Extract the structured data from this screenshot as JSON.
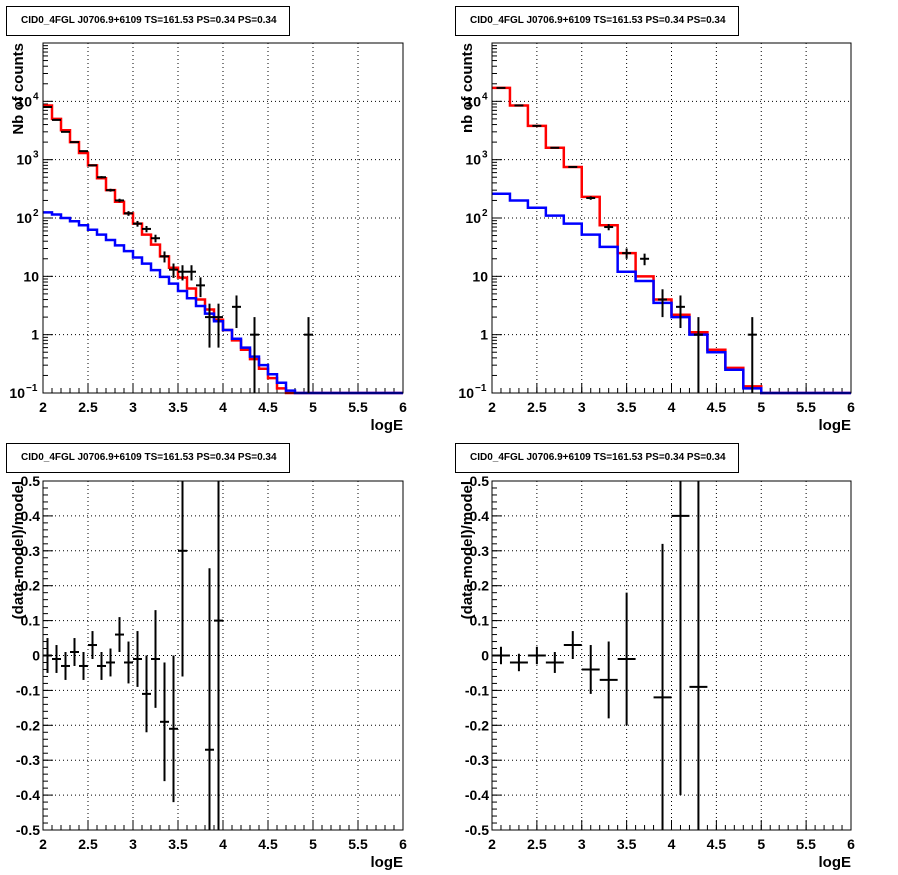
{
  "chart_data": [
    {
      "type": "line",
      "title": "CID0_4FGL J0706.9+6109 TS=161.53 PS=0.34 PS=0.34",
      "xlabel": "logE",
      "ylabel": "Nb of counts",
      "xlim": [
        2,
        6
      ],
      "ylim": [
        0.1,
        100000
      ],
      "yscale": "log",
      "grid": true,
      "x_ticks": [
        "2",
        "2.5",
        "3",
        "3.5",
        "4",
        "4.5",
        "5",
        "5.5",
        "6"
      ],
      "y_ticks": [
        {
          "value": 0.1,
          "label": "10",
          "sup": "−1"
        },
        {
          "value": 1,
          "label": "1",
          "sup": ""
        },
        {
          "value": 10,
          "label": "10",
          "sup": ""
        },
        {
          "value": 100,
          "label": "10",
          "sup": "2"
        },
        {
          "value": 1000,
          "label": "10",
          "sup": "3"
        },
        {
          "value": 10000,
          "label": "10",
          "sup": "4"
        }
      ],
      "bin_edges": [
        2.0,
        2.1,
        2.2,
        2.3,
        2.4,
        2.5,
        2.6,
        2.7,
        2.8,
        2.9,
        3.0,
        3.1,
        3.2,
        3.3,
        3.4,
        3.5,
        3.6,
        3.7,
        3.8,
        3.9,
        4.0,
        4.1,
        4.2,
        4.3,
        4.4,
        4.5,
        4.6,
        4.7,
        4.8,
        4.9,
        5.0,
        5.1,
        5.2,
        5.3,
        5.4,
        5.5,
        5.6,
        5.7,
        5.8,
        5.9,
        6.0
      ],
      "series": [
        {
          "color": "#ff0000",
          "kind": "step",
          "values": [
            8500,
            5000,
            3200,
            2000,
            1300,
            800,
            480,
            300,
            190,
            120,
            80,
            52,
            35,
            22,
            14,
            9.5,
            6.2,
            4.0,
            2.7,
            1.8,
            1.2,
            0.8,
            0.55,
            0.38,
            0.26,
            0.18,
            0.12,
            0.1,
            0.1,
            0.1,
            0.1,
            0.1,
            0.1,
            0.1,
            0.1,
            0.1,
            0.1,
            0.1,
            0.1,
            0.1
          ]
        },
        {
          "color": "#0000ff",
          "kind": "step",
          "values": [
            125,
            115,
            100,
            88,
            75,
            63,
            52,
            42,
            34,
            27,
            21,
            16.5,
            12.8,
            9.8,
            7.5,
            5.6,
            4.2,
            3.1,
            2.3,
            1.7,
            1.2,
            0.85,
            0.6,
            0.42,
            0.3,
            0.21,
            0.15,
            0.11,
            0.1,
            0.1,
            0.1,
            0.1,
            0.1,
            0.1,
            0.1,
            0.1,
            0.1,
            0.1,
            0.1,
            0.1
          ]
        },
        {
          "color": "#000000",
          "kind": "points",
          "points": [
            {
              "x": 2.05,
              "y": 8000,
              "lo": 7900,
              "hi": 8100
            },
            {
              "x": 2.15,
              "y": 4800,
              "lo": 4730,
              "hi": 4870
            },
            {
              "x": 2.25,
              "y": 3000,
              "lo": 2945,
              "hi": 3055
            },
            {
              "x": 2.35,
              "y": 2000,
              "lo": 1955,
              "hi": 2045
            },
            {
              "x": 2.45,
              "y": 1400,
              "lo": 1363,
              "hi": 1437
            },
            {
              "x": 2.55,
              "y": 800,
              "lo": 772,
              "hi": 828
            },
            {
              "x": 2.65,
              "y": 500,
              "lo": 478,
              "hi": 522
            },
            {
              "x": 2.75,
              "y": 300,
              "lo": 283,
              "hi": 317
            },
            {
              "x": 2.85,
              "y": 200,
              "lo": 186,
              "hi": 214
            },
            {
              "x": 2.95,
              "y": 120,
              "lo": 109,
              "hi": 131
            },
            {
              "x": 3.05,
              "y": 80,
              "lo": 71,
              "hi": 89
            },
            {
              "x": 3.15,
              "y": 65,
              "lo": 57,
              "hi": 73
            },
            {
              "x": 3.25,
              "y": 45,
              "lo": 38.3,
              "hi": 51.7
            },
            {
              "x": 3.35,
              "y": 22,
              "lo": 17.3,
              "hi": 26.7
            },
            {
              "x": 3.45,
              "y": 13,
              "lo": 9.4,
              "hi": 16.6
            },
            {
              "x": 3.55,
              "y": 12,
              "lo": 8.5,
              "hi": 15.5
            },
            {
              "x": 3.65,
              "y": 12,
              "lo": 8.5,
              "hi": 15.5
            },
            {
              "x": 3.75,
              "y": 7,
              "lo": 4.4,
              "hi": 9.6
            },
            {
              "x": 3.85,
              "y": 2,
              "lo": 0.6,
              "hi": 3.4
            },
            {
              "x": 3.95,
              "y": 2,
              "lo": 0.6,
              "hi": 3.4
            },
            {
              "x": 4.15,
              "y": 3,
              "lo": 1.3,
              "hi": 4.7
            },
            {
              "x": 4.35,
              "y": 1,
              "lo": 0.1,
              "hi": 2.0
            },
            {
              "x": 4.95,
              "y": 1,
              "lo": 0.1,
              "hi": 2.0
            }
          ]
        }
      ]
    },
    {
      "type": "line",
      "title": "CID0_4FGL J0706.9+6109 TS=161.53 PS=0.34 PS=0.34",
      "xlabel": "logE",
      "ylabel": "nb of counts",
      "xlim": [
        2,
        6
      ],
      "ylim": [
        0.1,
        100000
      ],
      "yscale": "log",
      "grid": true,
      "x_ticks": [
        "2",
        "2.5",
        "3",
        "3.5",
        "4",
        "4.5",
        "5",
        "5.5",
        "6"
      ],
      "y_ticks": [
        {
          "value": 0.1,
          "label": "10",
          "sup": "−1"
        },
        {
          "value": 1,
          "label": "1",
          "sup": ""
        },
        {
          "value": 10,
          "label": "10",
          "sup": ""
        },
        {
          "value": 100,
          "label": "10",
          "sup": "2"
        },
        {
          "value": 1000,
          "label": "10",
          "sup": "3"
        },
        {
          "value": 10000,
          "label": "10",
          "sup": "4"
        }
      ],
      "bin_edges": [
        2.0,
        2.2,
        2.4,
        2.6,
        2.8,
        3.0,
        3.2,
        3.4,
        3.6,
        3.8,
        4.0,
        4.2,
        4.4,
        4.6,
        4.8,
        5.0,
        5.2,
        5.4,
        5.6,
        5.8,
        6.0
      ],
      "series": [
        {
          "color": "#ff0000",
          "kind": "step",
          "values": [
            17000,
            8500,
            3800,
            1600,
            750,
            230,
            75,
            25,
            10,
            4.0,
            2.2,
            1.1,
            0.55,
            0.27,
            0.13,
            0.1,
            0.1,
            0.1,
            0.1,
            0.1
          ]
        },
        {
          "color": "#0000ff",
          "kind": "step",
          "values": [
            260,
            200,
            150,
            110,
            80,
            52,
            32,
            12,
            8.3,
            3.5,
            2.0,
            1.0,
            0.5,
            0.25,
            0.12,
            0.1,
            0.1,
            0.1,
            0.1,
            0.1
          ]
        },
        {
          "color": "#000000",
          "kind": "points",
          "points": [
            {
              "x": 2.1,
              "y": 17000,
              "lo": 16870,
              "hi": 17130
            },
            {
              "x": 2.3,
              "y": 8500,
              "lo": 8408,
              "hi": 8592
            },
            {
              "x": 2.5,
              "y": 3800,
              "lo": 3738,
              "hi": 3862
            },
            {
              "x": 2.7,
              "y": 1600,
              "lo": 1560,
              "hi": 1640
            },
            {
              "x": 2.9,
              "y": 750,
              "lo": 723,
              "hi": 777
            },
            {
              "x": 3.1,
              "y": 220,
              "lo": 205,
              "hi": 235
            },
            {
              "x": 3.3,
              "y": 70,
              "lo": 61.6,
              "hi": 78.4
            },
            {
              "x": 3.5,
              "y": 25,
              "lo": 20,
              "hi": 30
            },
            {
              "x": 3.7,
              "y": 20,
              "lo": 15.5,
              "hi": 24.5
            },
            {
              "x": 3.9,
              "y": 4,
              "lo": 2.0,
              "hi": 6.0
            },
            {
              "x": 4.1,
              "y": 3,
              "lo": 1.3,
              "hi": 4.7
            },
            {
              "x": 4.3,
              "y": 1,
              "lo": 0.1,
              "hi": 2.0
            },
            {
              "x": 4.9,
              "y": 1,
              "lo": 0.1,
              "hi": 2.0
            }
          ]
        }
      ]
    },
    {
      "type": "scatter",
      "title": "CID0_4FGL J0706.9+6109 TS=161.53 PS=0.34 PS=0.34",
      "xlabel": "logE",
      "ylabel": "(data-model)/model",
      "xlim": [
        2,
        6
      ],
      "ylim": [
        -0.5,
        0.5
      ],
      "grid": true,
      "x_ticks": [
        "2",
        "2.5",
        "3",
        "3.5",
        "4",
        "4.5",
        "5",
        "5.5",
        "6"
      ],
      "y_ticks": [
        "-0.5",
        "-0.4",
        "-0.3",
        "-0.2",
        "-0.1",
        "0",
        "0.1",
        "0.2",
        "0.3",
        "0.4",
        "0.5"
      ],
      "half_width": 0.05,
      "series": [
        {
          "color": "#000000",
          "points": [
            {
              "x": 2.05,
              "y": 0.0,
              "err": 0.05
            },
            {
              "x": 2.15,
              "y": -0.01,
              "err": 0.04
            },
            {
              "x": 2.25,
              "y": -0.03,
              "err": 0.04
            },
            {
              "x": 2.35,
              "y": 0.01,
              "err": 0.04
            },
            {
              "x": 2.45,
              "y": -0.03,
              "err": 0.04
            },
            {
              "x": 2.55,
              "y": 0.03,
              "err": 0.04
            },
            {
              "x": 2.65,
              "y": -0.03,
              "err": 0.04
            },
            {
              "x": 2.75,
              "y": -0.02,
              "err": 0.04
            },
            {
              "x": 2.85,
              "y": 0.06,
              "err": 0.05
            },
            {
              "x": 2.95,
              "y": -0.02,
              "err": 0.06
            },
            {
              "x": 3.05,
              "y": -0.01,
              "err": 0.08
            },
            {
              "x": 3.15,
              "y": -0.11,
              "err": 0.11
            },
            {
              "x": 3.25,
              "y": -0.01,
              "err": 0.14
            },
            {
              "x": 3.35,
              "y": -0.19,
              "err": 0.17
            },
            {
              "x": 3.45,
              "y": -0.21,
              "err": 0.21
            },
            {
              "x": 3.55,
              "y": 0.3,
              "err": 0.36
            },
            {
              "x": 3.85,
              "y": -0.27,
              "err": 0.52
            },
            {
              "x": 3.95,
              "y": 0.1,
              "err": 1.3
            }
          ]
        }
      ]
    },
    {
      "type": "scatter",
      "title": "CID0_4FGL J0706.9+6109 TS=161.53 PS=0.34 PS=0.34",
      "xlabel": "logE",
      "ylabel": "(data-model)/model",
      "xlim": [
        2,
        6
      ],
      "ylim": [
        -0.5,
        0.5
      ],
      "grid": true,
      "x_ticks": [
        "2",
        "2.5",
        "3",
        "3.5",
        "4",
        "4.5",
        "5",
        "5.5",
        "6"
      ],
      "y_ticks": [
        "-0.5",
        "-0.4",
        "-0.3",
        "-0.2",
        "-0.1",
        "0",
        "0.1",
        "0.2",
        "0.3",
        "0.4",
        "0.5"
      ],
      "half_width": 0.1,
      "series": [
        {
          "color": "#000000",
          "points": [
            {
              "x": 2.1,
              "y": 0.0,
              "err": 0.025
            },
            {
              "x": 2.3,
              "y": -0.02,
              "err": 0.025
            },
            {
              "x": 2.5,
              "y": 0.0,
              "err": 0.025
            },
            {
              "x": 2.7,
              "y": -0.02,
              "err": 0.03
            },
            {
              "x": 2.9,
              "y": 0.03,
              "err": 0.04
            },
            {
              "x": 3.1,
              "y": -0.04,
              "err": 0.07
            },
            {
              "x": 3.3,
              "y": -0.07,
              "err": 0.11
            },
            {
              "x": 3.5,
              "y": -0.01,
              "err": 0.19
            },
            {
              "x": 3.9,
              "y": -0.12,
              "err": 0.44
            },
            {
              "x": 4.1,
              "y": 0.4,
              "err": 0.8
            },
            {
              "x": 4.3,
              "y": -0.09,
              "err": 1.2
            }
          ]
        }
      ]
    }
  ]
}
